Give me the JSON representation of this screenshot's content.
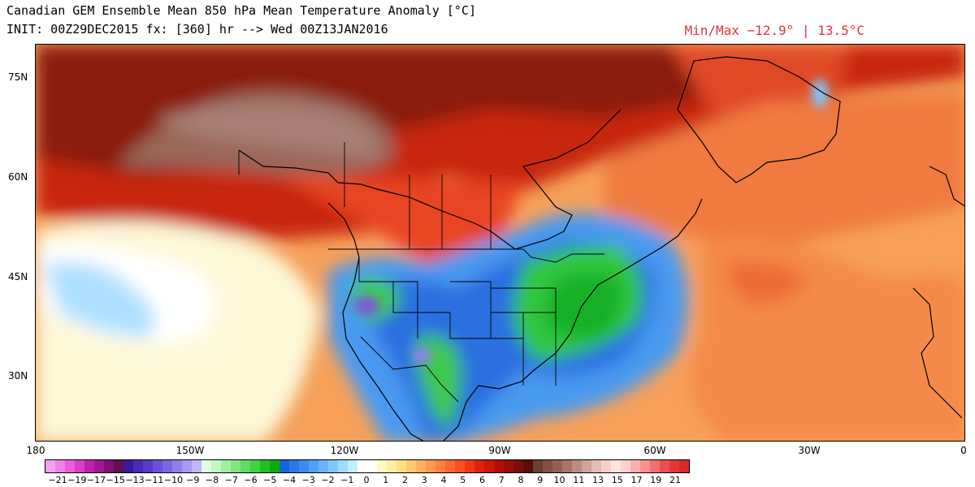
{
  "header": {
    "title": "Canadian GEM Ensemble Mean 850 hPa Mean Temperature Anomaly [°C]",
    "init_line": "INIT: 00Z29DEC2015 fx: [360] hr --> Wed 00Z13JAN2016",
    "minmax": "Min/Max −12.9° | 13.5°C"
  },
  "map": {
    "lat_labels": [
      "75N",
      "60N",
      "45N",
      "30N"
    ],
    "lon_labels": [
      "180",
      "150W",
      "120W",
      "90W",
      "60W",
      "30W",
      "0"
    ]
  },
  "colorbar": {
    "colors": [
      "#f7a0f0",
      "#f080e8",
      "#e860d8",
      "#d840c8",
      "#c020b0",
      "#a01890",
      "#801070",
      "#601050",
      "#3a1a9a",
      "#4a2ab8",
      "#5a3ac8",
      "#6a50d8",
      "#7a68e0",
      "#8e80e8",
      "#a69af0",
      "#c0b8f6",
      "#e0ffe0",
      "#c0f8c0",
      "#a0f0a0",
      "#80e680",
      "#60dc60",
      "#40d040",
      "#20c020",
      "#10a810",
      "#1464d8",
      "#2878e6",
      "#3c8cf0",
      "#50a0f6",
      "#68b4fa",
      "#80c8fc",
      "#a0dcfe",
      "#c0eeff",
      "#ffffff",
      "#ffffff",
      "#fffbc0",
      "#ffefa0",
      "#ffe080",
      "#ffc870",
      "#ffb060",
      "#ff9850",
      "#ff8040",
      "#fc6a30",
      "#f85020",
      "#f03818",
      "#e02010",
      "#cc1808",
      "#b01008",
      "#941008",
      "#781008",
      "#5a0c06",
      "#6a4030",
      "#805040",
      "#946050",
      "#a87468",
      "#bc8c80",
      "#d0a49a",
      "#e4bcb2",
      "#f4d0c8",
      "#fce4dc",
      "#ffd0d0",
      "#fcb0b0",
      "#f89090",
      "#f07070",
      "#e85050",
      "#e03838",
      "#d82828"
    ],
    "labels": [
      "−21",
      "−19",
      "−17",
      "−15",
      "−13",
      "−11",
      "−10",
      "−9",
      "−8",
      "−7",
      "−6",
      "−5",
      "−4",
      "−3",
      "−2",
      "−1",
      "0",
      "1",
      "2",
      "3",
      "4",
      "5",
      "6",
      "7",
      "8",
      "9",
      "10",
      "11",
      "13",
      "15",
      "17",
      "19",
      "21"
    ]
  }
}
